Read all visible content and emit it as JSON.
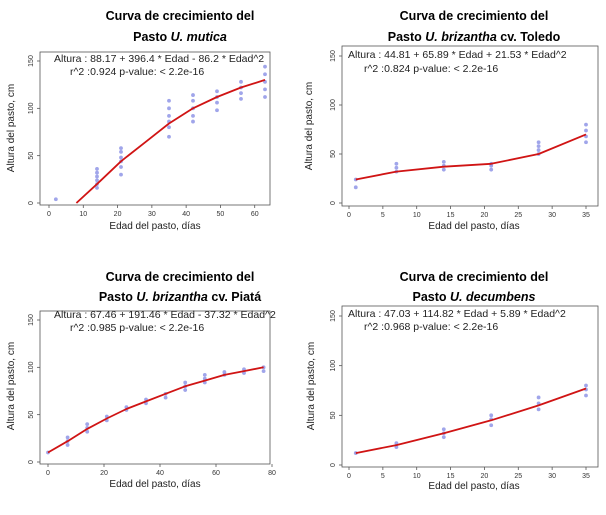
{
  "chart_data": [
    {
      "type": "scatter",
      "title_prefix": "Curva de crecimiento del",
      "title_plain": "Pasto ",
      "title_italic": "U. mutica",
      "title_suffix": "",
      "xlabel": "Edad del pasto, días",
      "ylabel": "Altura del pasto, cm",
      "xlim": [
        0,
        63
      ],
      "ylim": [
        0,
        150
      ],
      "xticks": [
        0,
        10,
        20,
        30,
        40,
        50,
        60
      ],
      "yticks": [
        0,
        50,
        100,
        150
      ],
      "equation": "Altura : 88.17 + 396.4 * Edad - 86.2 * Edad^2",
      "stats": "r^2 :0.924   p-value: < 2.2e-16",
      "series": [
        {
          "points": [
            [
              2,
              4
            ],
            [
              14,
              16
            ],
            [
              14,
              20
            ],
            [
              14,
              24
            ],
            [
              14,
              28
            ],
            [
              14,
              32
            ],
            [
              14,
              36
            ],
            [
              21,
              30
            ],
            [
              21,
              38
            ],
            [
              21,
              44
            ],
            [
              21,
              48
            ],
            [
              21,
              54
            ],
            [
              21,
              58
            ],
            [
              35,
              70
            ],
            [
              35,
              80
            ],
            [
              35,
              86
            ],
            [
              35,
              92
            ],
            [
              35,
              100
            ],
            [
              35,
              108
            ],
            [
              42,
              86
            ],
            [
              42,
              92
            ],
            [
              42,
              100
            ],
            [
              42,
              108
            ],
            [
              42,
              114
            ],
            [
              49,
              98
            ],
            [
              49,
              106
            ],
            [
              49,
              112
            ],
            [
              49,
              118
            ],
            [
              56,
              110
            ],
            [
              56,
              116
            ],
            [
              56,
              122
            ],
            [
              56,
              128
            ],
            [
              63,
              112
            ],
            [
              63,
              120
            ],
            [
              63,
              128
            ],
            [
              63,
              136
            ],
            [
              63,
              144
            ]
          ],
          "fit": [
            [
              8,
              0
            ],
            [
              14,
              20
            ],
            [
              21,
              44
            ],
            [
              28,
              64
            ],
            [
              35,
              84
            ],
            [
              42,
              100
            ],
            [
              49,
              112
            ],
            [
              56,
              122
            ],
            [
              63,
              130
            ]
          ]
        }
      ]
    },
    {
      "type": "scatter",
      "title_prefix": "Curva de crecimiento del",
      "title_plain": "Pasto ",
      "title_italic": "U. brizantha",
      "title_suffix": " cv. Toledo",
      "xlabel": "Edad del pasto, días",
      "ylabel": "Altura del pasto, cm",
      "xlim": [
        0,
        35
      ],
      "ylim": [
        0,
        150
      ],
      "xticks": [
        0,
        5,
        10,
        15,
        20,
        25,
        30,
        35
      ],
      "yticks": [
        0,
        50,
        100,
        150
      ],
      "equation": "Altura : 44.81 + 65.89 * Edad  + 21.53 * Edad^2",
      "stats": "r^2 :0.824   p-value: < 2.2e-16",
      "series": [
        {
          "points": [
            [
              1,
              16
            ],
            [
              1,
              24
            ],
            [
              7,
              32
            ],
            [
              7,
              36
            ],
            [
              7,
              40
            ],
            [
              14,
              34
            ],
            [
              14,
              38
            ],
            [
              14,
              42
            ],
            [
              21,
              34
            ],
            [
              21,
              38
            ],
            [
              21,
              40
            ],
            [
              28,
              50
            ],
            [
              28,
              54
            ],
            [
              28,
              58
            ],
            [
              28,
              62
            ],
            [
              35,
              62
            ],
            [
              35,
              68
            ],
            [
              35,
              74
            ],
            [
              35,
              80
            ]
          ],
          "fit": [
            [
              1,
              24
            ],
            [
              7,
              32
            ],
            [
              14,
              37
            ],
            [
              21,
              40
            ],
            [
              28,
              50
            ],
            [
              35,
              70
            ]
          ]
        }
      ]
    },
    {
      "type": "scatter",
      "title_prefix": "Curva de crecimiento del",
      "title_plain": "Pasto ",
      "title_italic": "U. brizantha",
      "title_suffix": " cv. Piatá",
      "xlabel": "Edad del pasto, días",
      "ylabel": "Altura del pasto, cm",
      "xlim": [
        0,
        80
      ],
      "ylim": [
        0,
        150
      ],
      "xticks": [
        0,
        20,
        40,
        60,
        80
      ],
      "yticks": [
        0,
        50,
        100,
        150
      ],
      "equation": "Altura : 67.46 + 191.46 * Edad  - 37.32 * Edad^2",
      "stats": "r^2 :0.985   p-value: < 2.2e-16",
      "series": [
        {
          "points": [
            [
              0,
              10
            ],
            [
              7,
              18
            ],
            [
              7,
              22
            ],
            [
              7,
              26
            ],
            [
              14,
              32
            ],
            [
              14,
              36
            ],
            [
              14,
              40
            ],
            [
              21,
              44
            ],
            [
              21,
              48
            ],
            [
              28,
              55
            ],
            [
              28,
              58
            ],
            [
              35,
              62
            ],
            [
              35,
              66
            ],
            [
              42,
              68
            ],
            [
              42,
              72
            ],
            [
              49,
              76
            ],
            [
              49,
              80
            ],
            [
              49,
              84
            ],
            [
              56,
              84
            ],
            [
              56,
              88
            ],
            [
              56,
              92
            ],
            [
              63,
              92
            ],
            [
              63,
              95
            ],
            [
              70,
              94
            ],
            [
              70,
              98
            ],
            [
              77,
              96
            ],
            [
              77,
              100
            ]
          ],
          "fit": [
            [
              0,
              10
            ],
            [
              7,
              22
            ],
            [
              14,
              35
            ],
            [
              21,
              46
            ],
            [
              28,
              56
            ],
            [
              35,
              64
            ],
            [
              42,
              72
            ],
            [
              49,
              80
            ],
            [
              56,
              86
            ],
            [
              63,
              92
            ],
            [
              70,
              96
            ],
            [
              77,
              100
            ]
          ]
        }
      ]
    },
    {
      "type": "scatter",
      "title_prefix": "Curva de crecimiento del",
      "title_plain": "Pasto ",
      "title_italic": "U. decumbens",
      "title_suffix": "",
      "xlabel": "Edad del pasto, días",
      "ylabel": "Altura del pasto, cm",
      "xlim": [
        0,
        35
      ],
      "ylim": [
        0,
        150
      ],
      "xticks": [
        0,
        5,
        10,
        15,
        20,
        25,
        30,
        35
      ],
      "yticks": [
        0,
        50,
        100,
        150
      ],
      "equation": "Altura : 47.03 + 114.82 * Edad  + 5.89 * Edad^2",
      "stats": "r^2 :0.968   p-value: < 2.2e-16",
      "series": [
        {
          "points": [
            [
              1,
              12
            ],
            [
              7,
              18
            ],
            [
              7,
              22
            ],
            [
              14,
              28
            ],
            [
              14,
              32
            ],
            [
              14,
              36
            ],
            [
              21,
              40
            ],
            [
              21,
              46
            ],
            [
              21,
              50
            ],
            [
              28,
              56
            ],
            [
              28,
              62
            ],
            [
              28,
              68
            ],
            [
              35,
              70
            ],
            [
              35,
              76
            ],
            [
              35,
              80
            ]
          ],
          "fit": [
            [
              1,
              12
            ],
            [
              7,
              20
            ],
            [
              14,
              32
            ],
            [
              21,
              45
            ],
            [
              28,
              60
            ],
            [
              35,
              77
            ]
          ]
        }
      ]
    }
  ]
}
